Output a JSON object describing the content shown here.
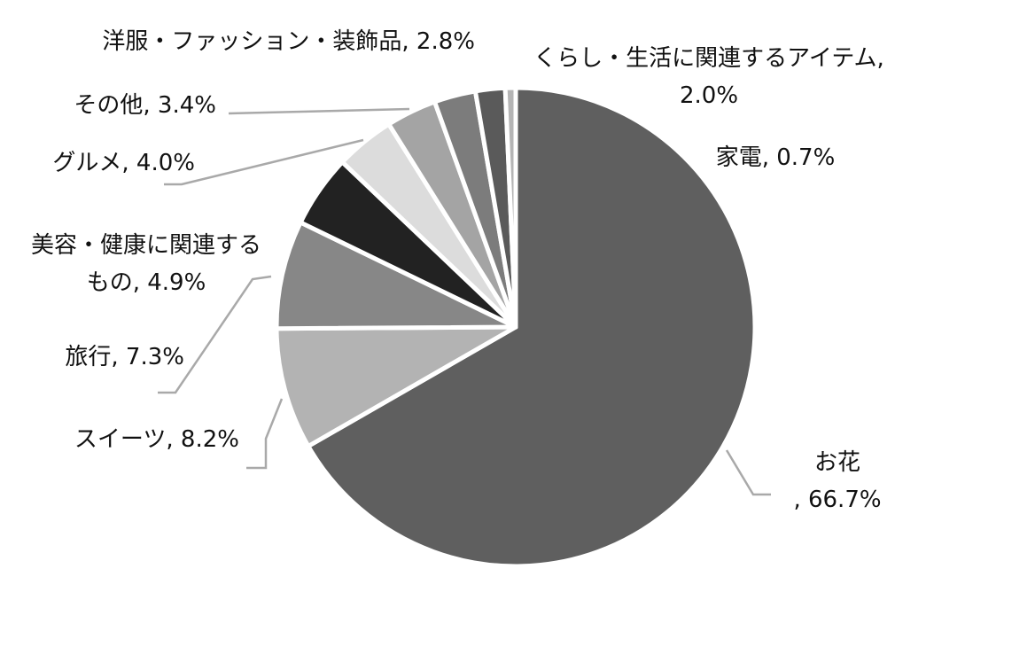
{
  "chart_data": {
    "type": "pie",
    "title": "",
    "start_angle_deg": 0,
    "direction": "clockwise",
    "slices": [
      {
        "label": "お花",
        "value": 66.7,
        "display": "66.7%",
        "color": "#5f5f5f"
      },
      {
        "label": "スイーツ",
        "value": 8.2,
        "display": "8.2%",
        "color": "#b3b3b3"
      },
      {
        "label": "旅行",
        "value": 7.3,
        "display": "7.3%",
        "color": "#878787"
      },
      {
        "label": "美容・健康に関連するもの",
        "value": 4.9,
        "display": "4.9%",
        "color": "#222222"
      },
      {
        "label": "グルメ",
        "value": 4.0,
        "display": "4.0%",
        "color": "#dcdcdc"
      },
      {
        "label": "その他",
        "value": 3.4,
        "display": "3.4%",
        "color": "#a4a4a4"
      },
      {
        "label": "洋服・ファッション・装飾品",
        "value": 2.8,
        "display": "2.8%",
        "color": "#7c7c7c"
      },
      {
        "label": "くらし・生活に関連するアイテム",
        "value": 2.0,
        "display": "2.0%",
        "color": "#5a5a5a"
      },
      {
        "label": "家電",
        "value": 0.7,
        "display": "0.7%",
        "color": "#b5b5b5"
      }
    ],
    "labels_text": [
      [
        "お花",
        ", 66.7%"
      ],
      [
        "スイーツ, 8.2%"
      ],
      [
        "旅行, 7.3%"
      ],
      [
        "美容・健康に関連する",
        "もの, 4.9%"
      ],
      [
        "グルメ, 4.0%"
      ],
      [
        "その他, 3.4%"
      ],
      [
        "洋服・ファッション・装飾品, 2.8%"
      ],
      [
        "くらし・生活に関連するアイテム,",
        "2.0%"
      ],
      [
        "家電, 0.7%"
      ]
    ]
  }
}
